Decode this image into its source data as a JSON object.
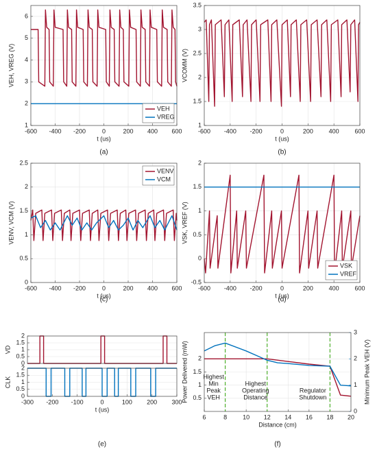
{
  "chart_data": [
    {
      "type": "line",
      "caption": "(a)",
      "xlabel": "t (us)",
      "ylabel": "VEH, VREG (V)",
      "xlim": [
        -600,
        600
      ],
      "xticks": [
        -600,
        -400,
        -200,
        0,
        200,
        400,
        600
      ],
      "ylim": [
        1,
        6.5
      ],
      "yticks": [
        1,
        2,
        3,
        4,
        5,
        6
      ],
      "grid": true,
      "legend": "lower right",
      "series": [
        {
          "name": "VEH",
          "color": "#a2142f",
          "x": [
            -600,
            -540,
            -535,
            -485,
            -480,
            -470,
            -450,
            -445,
            -415,
            -410,
            -400,
            -335,
            -330,
            -305,
            -300,
            -290,
            -265,
            -260,
            -230,
            -225,
            -215,
            -170,
            -165,
            -135,
            -130,
            -120,
            -95,
            -90,
            -55,
            -50,
            -40,
            15,
            20,
            45,
            50,
            60,
            85,
            90,
            125,
            130,
            140,
            160,
            165,
            205,
            210,
            220,
            265,
            270,
            300,
            305,
            315,
            340,
            345,
            375,
            380,
            390,
            435,
            440,
            475,
            480,
            490,
            520,
            525,
            555,
            560,
            570,
            585,
            590,
            600
          ],
          "values": [
            5.4,
            5.4,
            3.0,
            2.8,
            6.3,
            5.5,
            5.4,
            3.0,
            2.8,
            6.3,
            5.5,
            5.4,
            3.0,
            2.8,
            6.3,
            5.5,
            5.4,
            3.0,
            2.8,
            6.3,
            5.5,
            5.4,
            3.0,
            2.8,
            6.3,
            5.5,
            5.4,
            3.0,
            2.8,
            6.3,
            5.5,
            5.4,
            3.0,
            2.8,
            6.3,
            5.5,
            5.4,
            3.0,
            2.8,
            6.3,
            5.5,
            5.4,
            3.0,
            2.8,
            6.3,
            5.5,
            5.4,
            3.0,
            2.8,
            6.3,
            5.5,
            5.4,
            3.0,
            2.8,
            6.3,
            5.5,
            5.4,
            3.0,
            2.8,
            6.3,
            5.5,
            5.4,
            3.0,
            2.8,
            6.3,
            5.5,
            5.4,
            3.0,
            2.8
          ]
        },
        {
          "name": "VREG",
          "color": "#0072bd",
          "x": [
            -600,
            600
          ],
          "values": [
            2,
            2
          ]
        }
      ]
    },
    {
      "type": "line",
      "caption": "(b)",
      "xlabel": "t (us)",
      "ylabel": "VCOMM (V)",
      "xlim": [
        -600,
        600
      ],
      "xticks": [
        -600,
        -400,
        -200,
        0,
        200,
        400,
        600
      ],
      "ylim": [
        1,
        3.5
      ],
      "yticks": [
        1,
        1.5,
        2,
        2.5,
        3,
        3.5
      ],
      "grid": true,
      "series": [
        {
          "name": "VCOMM",
          "color": "#a2142f",
          "x": [
            -600,
            -585,
            -565,
            -560,
            -545,
            -520,
            -515,
            -470,
            -445,
            -440,
            -410,
            -385,
            -380,
            -330,
            -305,
            -300,
            -270,
            -240,
            -235,
            -200,
            -170,
            -165,
            -110,
            -85,
            -80,
            -40,
            -5,
            0,
            40,
            65,
            70,
            110,
            140,
            145,
            190,
            220,
            225,
            270,
            300,
            305,
            345,
            375,
            380,
            430,
            455,
            460,
            500,
            525,
            530,
            560,
            585,
            590,
            600
          ],
          "values": [
            3.15,
            3.2,
            1.5,
            3.1,
            3.2,
            1.4,
            3.1,
            3.2,
            1.6,
            3.1,
            3.2,
            1.5,
            3.1,
            3.2,
            1.6,
            3.1,
            3.2,
            1.5,
            3.1,
            3.2,
            1.5,
            3.1,
            3.2,
            1.5,
            3.1,
            3.2,
            1.4,
            3.1,
            3.2,
            1.6,
            3.1,
            3.2,
            1.5,
            3.1,
            3.2,
            1.5,
            3.1,
            3.2,
            1.6,
            3.1,
            3.2,
            1.5,
            3.1,
            3.2,
            1.6,
            3.1,
            3.2,
            1.7,
            3.1,
            3.2,
            1.5,
            3.1,
            3.15
          ]
        }
      ]
    },
    {
      "type": "line",
      "caption": "(c)",
      "xlabel": "t (us)",
      "ylabel": "VENV, VCM (V)",
      "xlim": [
        -600,
        600
      ],
      "xticks": [
        -600,
        -400,
        -200,
        0,
        200,
        400,
        600
      ],
      "ylim": [
        0,
        2.5
      ],
      "yticks": [
        0,
        0.5,
        1,
        1.5,
        2,
        2.5
      ],
      "grid": true,
      "legend": "upper right",
      "series": [
        {
          "name": "VENV",
          "color": "#a2142f",
          "x": [
            -600,
            -585,
            -575,
            -560,
            -510,
            -500,
            -485,
            -430,
            -420,
            -405,
            -350,
            -340,
            -325,
            -280,
            -270,
            -255,
            -200,
            -190,
            -175,
            -120,
            -110,
            -95,
            -50,
            -40,
            -25,
            30,
            40,
            55,
            110,
            120,
            135,
            180,
            190,
            205,
            260,
            270,
            285,
            340,
            350,
            365,
            410,
            420,
            435,
            490,
            500,
            515,
            570,
            580,
            595,
            600
          ],
          "values": [
            1.3,
            1.52,
            0.88,
            1.45,
            1.52,
            0.88,
            1.45,
            1.52,
            0.88,
            1.45,
            1.52,
            0.88,
            1.45,
            1.52,
            0.88,
            1.45,
            1.52,
            0.88,
            1.45,
            1.52,
            0.88,
            1.45,
            1.52,
            0.88,
            1.45,
            1.52,
            0.88,
            1.45,
            1.52,
            0.88,
            1.45,
            1.52,
            0.88,
            1.45,
            1.52,
            0.88,
            1.45,
            1.52,
            0.88,
            1.45,
            1.52,
            0.88,
            1.45,
            1.52,
            0.88,
            1.45,
            1.52,
            0.88,
            1.45,
            1.3
          ]
        },
        {
          "name": "VCM",
          "color": "#0072bd",
          "x": [
            -600,
            -560,
            -520,
            -480,
            -440,
            -400,
            -360,
            -300,
            -260,
            -220,
            -180,
            -140,
            -100,
            -60,
            0,
            40,
            80,
            120,
            160,
            200,
            240,
            280,
            320,
            380,
            420,
            460,
            500,
            560,
            600
          ],
          "values": [
            1.35,
            1.4,
            1.15,
            1.3,
            1.1,
            1.25,
            1.1,
            1.4,
            1.2,
            1.35,
            1.1,
            1.25,
            1.1,
            1.25,
            1.4,
            1.15,
            1.3,
            1.1,
            1.2,
            1.35,
            1.1,
            1.3,
            1.15,
            1.4,
            1.15,
            1.3,
            1.1,
            1.4,
            1.1
          ]
        }
      ]
    },
    {
      "type": "line",
      "caption": "(d)",
      "xlabel": "t (us)",
      "ylabel": "VSK, VREF (V)",
      "xlim": [
        -600,
        600
      ],
      "xticks": [
        -600,
        -400,
        -200,
        0,
        200,
        400,
        600
      ],
      "ylim": [
        -0.5,
        2
      ],
      "yticks": [
        -0.5,
        0,
        0.5,
        1,
        1.5,
        2
      ],
      "grid": true,
      "legend": "lower right",
      "series": [
        {
          "name": "VSK",
          "color": "#a2142f",
          "x": [
            -600,
            -590,
            -560,
            -555,
            -500,
            -495,
            -400,
            -395,
            -350,
            -345,
            -280,
            -275,
            -140,
            -135,
            -80,
            -75,
            -5,
            0,
            130,
            135,
            200,
            205,
            270,
            275,
            400,
            405,
            460,
            465,
            530,
            535,
            600
          ],
          "values": [
            0,
            -0.3,
            1.0,
            -0.2,
            0.9,
            -0.2,
            1.75,
            -0.3,
            1.0,
            -0.2,
            1.0,
            -0.2,
            1.75,
            -0.3,
            1.0,
            -0.2,
            1.0,
            -0.2,
            1.75,
            -0.3,
            1.0,
            -0.2,
            1.0,
            -0.2,
            1.75,
            -0.3,
            1.0,
            -0.2,
            1.0,
            -0.2,
            0.9
          ]
        },
        {
          "name": "VREF",
          "color": "#0072bd",
          "x": [
            -600,
            600
          ],
          "values": [
            1.5,
            1.5
          ]
        }
      ]
    },
    {
      "type": "line",
      "ylabel": "VD",
      "xlim": [
        -300,
        300
      ],
      "ylim": [
        0,
        2
      ],
      "yticks": [
        0,
        0.5,
        1,
        1.5,
        2
      ],
      "grid": true,
      "series": [
        {
          "name": "VD",
          "color": "#a2142f",
          "x": [
            -300,
            -250,
            -250,
            -235,
            -235,
            -5,
            -5,
            10,
            10,
            245,
            245,
            260,
            260,
            300
          ],
          "values": [
            0,
            0,
            2,
            2,
            0,
            0,
            2,
            2,
            0,
            0,
            2,
            2,
            0,
            0
          ]
        }
      ]
    },
    {
      "type": "line",
      "caption": "(e)",
      "xlabel": "t (us)",
      "ylabel": "CLK",
      "xlim": [
        -300,
        300
      ],
      "xticks": [
        -300,
        -200,
        -100,
        0,
        100,
        200,
        300
      ],
      "ylim": [
        0,
        2
      ],
      "yticks": [
        0,
        0.5,
        1,
        1.5,
        2
      ],
      "grid": true,
      "series": [
        {
          "name": "CLK",
          "color": "#0072bd",
          "x": [
            -300,
            -225,
            -225,
            -205,
            -205,
            -150,
            -150,
            -130,
            -130,
            -80,
            -80,
            -65,
            -65,
            0,
            0,
            20,
            20,
            50,
            50,
            65,
            65,
            115,
            115,
            135,
            135,
            195,
            195,
            215,
            215,
            300
          ],
          "values": [
            2,
            2,
            0,
            0,
            2,
            2,
            0,
            0,
            2,
            2,
            0,
            0,
            2,
            2,
            0,
            0,
            2,
            2,
            0,
            0,
            2,
            2,
            0,
            0,
            2,
            2,
            0,
            0,
            2,
            2
          ]
        }
      ]
    },
    {
      "type": "line",
      "caption": "(f)",
      "xlabel": "Distance (cm)",
      "ylabel": "Power Delivered (mW)",
      "ylabel_color": "#a2142f",
      "y2label": "Minimum Peak VEH (V)",
      "y2label_color": "#0072bd",
      "xlim": [
        6,
        20
      ],
      "xticks": [
        6,
        8,
        10,
        12,
        14,
        16,
        18,
        20
      ],
      "ylim": [
        0,
        3
      ],
      "yticks": [
        0.5,
        1,
        1.5,
        2
      ],
      "y2lim": [
        0,
        3
      ],
      "y2ticks": [
        0,
        1,
        2,
        3
      ],
      "grid": true,
      "vlines": [
        8,
        12,
        18
      ],
      "vline_color": "#4daf2a",
      "annotations": [
        [
          "Highest",
          "Min",
          "Peak",
          "VEH"
        ],
        [
          "Highest",
          "Operating",
          "Distance"
        ],
        [
          "Regulator",
          "Shutdown"
        ]
      ],
      "series": [
        {
          "name": "Power Delivered",
          "color": "#a2142f",
          "x": [
            6,
            8,
            10,
            12,
            14,
            16,
            18,
            19,
            20
          ],
          "values": [
            2,
            2,
            2,
            2,
            1.9,
            1.8,
            1.72,
            0.62,
            0.58
          ]
        },
        {
          "name": "Minimum Peak VEH",
          "color": "#0072bd",
          "axis": "y2",
          "x": [
            6,
            7,
            8,
            10,
            12,
            13,
            14,
            16,
            18,
            19,
            20
          ],
          "values": [
            2.3,
            2.5,
            2.6,
            2.3,
            1.95,
            1.85,
            1.82,
            1.75,
            1.72,
            1.0,
            0.97
          ]
        }
      ]
    }
  ]
}
